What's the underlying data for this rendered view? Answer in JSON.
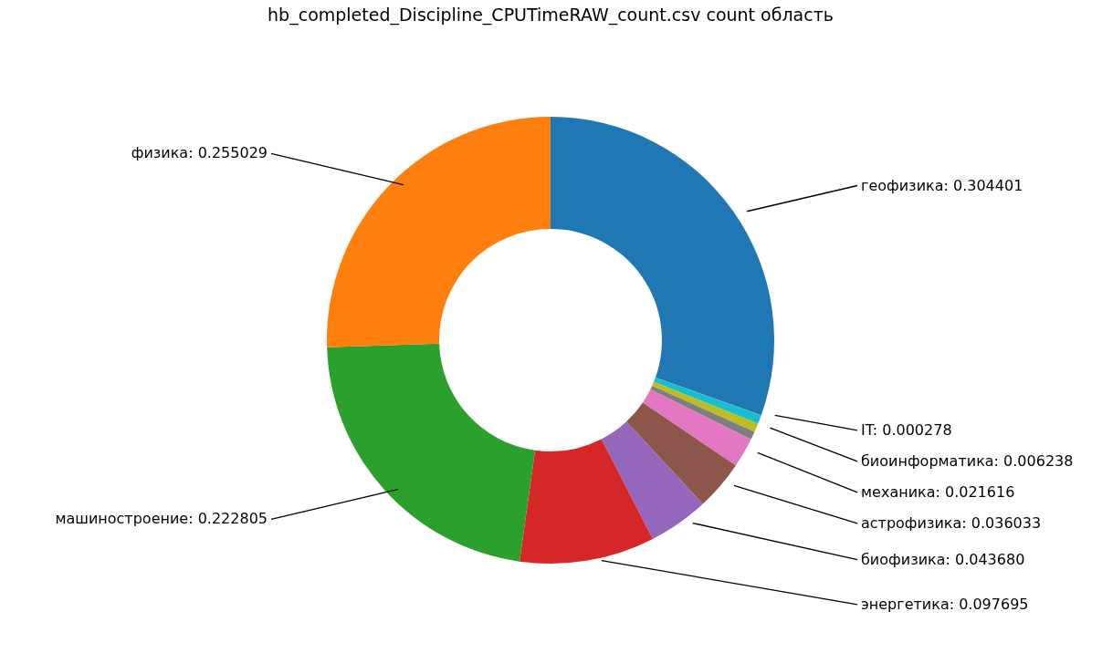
{
  "chart_data": {
    "type": "donut",
    "title": "hb_completed_Discipline_CPUTimeRAW_count.csv count область",
    "categories": [
      "геофизика",
      "IT",
      null,
      "биоинформатика",
      null,
      "механика",
      "астрофизика",
      "биофизика",
      "энергетика",
      "машиностроение",
      "физика"
    ],
    "values": [
      0.304401,
      0.000278,
      0.0063,
      0.006238,
      0.0059,
      0.021616,
      0.036033,
      0.04368,
      0.097695,
      0.222805,
      0.255029
    ],
    "colors": [
      "#1f77b4",
      "#1f77b4",
      "#17becf",
      "#bcbd22",
      "#7f7f7f",
      "#e377c2",
      "#8c564b",
      "#9467bd",
      "#d62728",
      "#2ca02c",
      "#ff7f0e"
    ],
    "value_labels": [
      "0.304401",
      "0.000278",
      null,
      "0.006238",
      null,
      "0.021616",
      "0.036033",
      "0.043680",
      "0.097695",
      "0.222805",
      "0.255029"
    ]
  }
}
